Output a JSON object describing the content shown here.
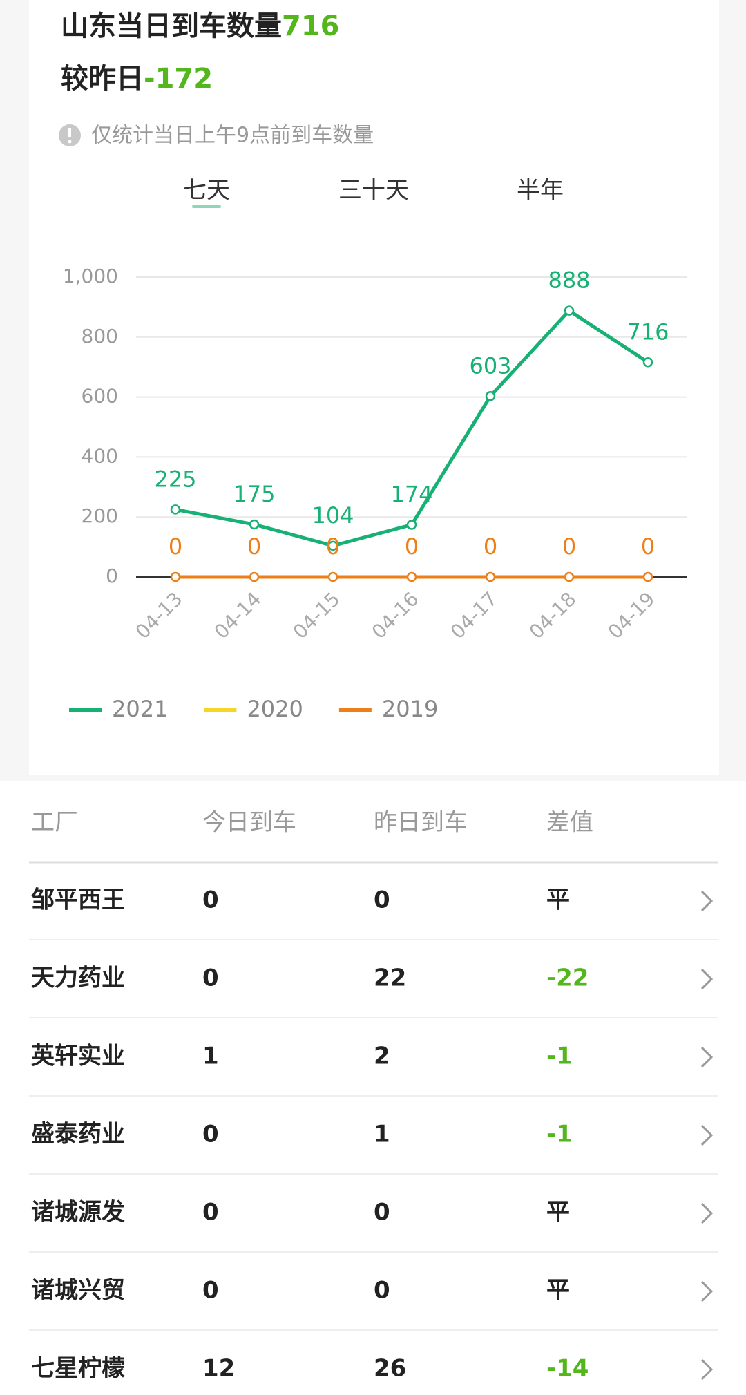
{
  "header": {
    "title": "山东当日到车数量",
    "total": 716,
    "compare_label": "较昨日",
    "change": -172,
    "note": "仅统计当日上午9点前到车数量",
    "tabs": [
      "七天",
      "三十天",
      "半年"
    ]
  },
  "chart_data": {
    "type": "line",
    "categories": [
      "04-13",
      "04-14",
      "04-15",
      "04-16",
      "04-17",
      "04-18",
      "04-19"
    ],
    "series": [
      {
        "name": "2021",
        "color": "#17b075",
        "values": [
          225,
          175,
          104,
          174,
          603,
          888,
          716
        ]
      },
      {
        "name": "2020",
        "color": "#f5d628",
        "values": [
          null,
          null,
          null,
          null,
          null,
          null,
          null
        ]
      },
      {
        "name": "2019",
        "color": "#ec7f17",
        "values": [
          0,
          0,
          0,
          0,
          0,
          0,
          0
        ]
      }
    ],
    "ylim": [
      0,
      1000
    ],
    "yticks": [
      0,
      200,
      400,
      600,
      800,
      {
        "value": 1000,
        "label": "1,000"
      }
    ],
    "grid": true
  },
  "table": {
    "columns": [
      "工厂",
      "今日到车",
      "昨日到车",
      "差值"
    ],
    "rows": [
      [
        "邹平西王",
        0,
        0,
        "平"
      ],
      [
        "天力药业",
        0,
        22,
        -22
      ],
      [
        "英轩实业",
        1,
        2,
        -1
      ],
      [
        "盛泰药业",
        0,
        1,
        -1
      ],
      [
        "诸城源发",
        0,
        0,
        "平"
      ],
      [
        "诸城兴贸",
        0,
        0,
        "平"
      ],
      [
        "七星柠檬",
        12,
        26,
        -14
      ]
    ]
  }
}
